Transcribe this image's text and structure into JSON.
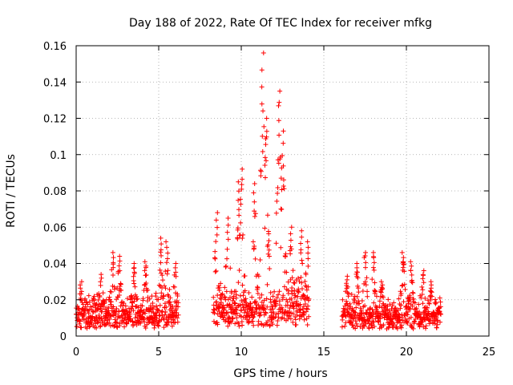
{
  "chart_data": {
    "type": "scatter",
    "title": "Day 188 of 2022, Rate Of TEC Index for receiver mfkg",
    "xlabel": "GPS time / hours",
    "ylabel": "ROTI / TECUs",
    "xlim": [
      0,
      25
    ],
    "ylim": [
      0,
      0.16
    ],
    "x_ticks": [
      "0",
      "5",
      "10",
      "15",
      "20",
      "25"
    ],
    "y_ticks": [
      "0",
      "0.02",
      "0.04",
      "0.06",
      "0.08",
      "0.1",
      "0.12",
      "0.14",
      "0.16"
    ],
    "grid": true,
    "marker": "+",
    "color": "#ff0000",
    "series": [
      {
        "segments": [
          {
            "x_start": 0.0,
            "x_end": 6.2,
            "base": 0.012,
            "spread": 0.01,
            "peaks": [
              [
                0.3,
                0.03
              ],
              [
                1.5,
                0.034
              ],
              [
                2.2,
                0.046
              ],
              [
                2.6,
                0.044
              ],
              [
                3.5,
                0.04
              ],
              [
                4.2,
                0.041
              ],
              [
                5.1,
                0.054
              ],
              [
                5.5,
                0.052
              ],
              [
                6.0,
                0.04
              ]
            ]
          },
          {
            "x_start": 8.3,
            "x_end": 14.1,
            "base": 0.015,
            "spread": 0.012,
            "peaks": [
              [
                8.5,
                0.068
              ],
              [
                9.2,
                0.065
              ],
              [
                9.8,
                0.085
              ],
              [
                10.0,
                0.092
              ],
              [
                10.8,
                0.084
              ],
              [
                11.3,
                0.156
              ],
              [
                11.5,
                0.12
              ],
              [
                12.3,
                0.135
              ],
              [
                12.5,
                0.113
              ],
              [
                13.0,
                0.06
              ],
              [
                13.6,
                0.058
              ],
              [
                14.0,
                0.052
              ]
            ]
          },
          {
            "x_start": 16.1,
            "x_end": 22.1,
            "base": 0.011,
            "spread": 0.009,
            "peaks": [
              [
                16.4,
                0.033
              ],
              [
                17.0,
                0.04
              ],
              [
                17.5,
                0.046
              ],
              [
                18.0,
                0.046
              ],
              [
                18.5,
                0.03
              ],
              [
                19.8,
                0.046
              ],
              [
                20.3,
                0.041
              ],
              [
                21.0,
                0.036
              ],
              [
                21.5,
                0.03
              ]
            ]
          }
        ]
      }
    ]
  }
}
